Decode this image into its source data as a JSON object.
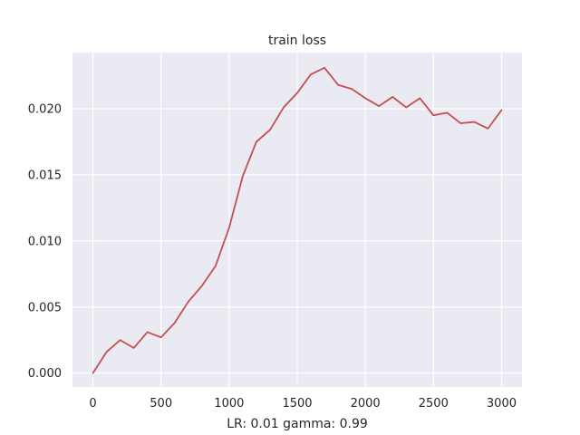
{
  "chart_data": {
    "type": "line",
    "title": "train loss",
    "xlabel": "LR: 0.01 gamma: 0.99",
    "ylabel": "",
    "xlim": [
      -150,
      3150
    ],
    "ylim": [
      -0.00105,
      0.02425
    ],
    "xticks": [
      0,
      500,
      1000,
      1500,
      2000,
      2500,
      3000
    ],
    "xtick_labels": [
      "0",
      "500",
      "1000",
      "1500",
      "2000",
      "2500",
      "3000"
    ],
    "yticks": [
      0.0,
      0.005,
      0.01,
      0.015,
      0.02
    ],
    "ytick_labels": [
      "0.000",
      "0.005",
      "0.010",
      "0.015",
      "0.020"
    ],
    "grid": true,
    "background": "#EAEAF2",
    "line_color": "#C44E52",
    "series": [
      {
        "x": [
          0,
          100,
          200,
          300,
          400,
          500,
          600,
          700,
          800,
          900,
          1000,
          1100,
          1200,
          1300,
          1400,
          1500,
          1600,
          1700,
          1800,
          1900,
          2000,
          2100,
          2200,
          2300,
          2400,
          2500,
          2600,
          2700,
          2800,
          2900,
          3000
        ],
        "values": [
          0.0,
          0.0016,
          0.0025,
          0.0019,
          0.0031,
          0.0027,
          0.0038,
          0.0054,
          0.0066,
          0.0081,
          0.011,
          0.0149,
          0.0175,
          0.0184,
          0.0201,
          0.0212,
          0.0226,
          0.0231,
          0.0218,
          0.0215,
          0.0208,
          0.0202,
          0.0209,
          0.0201,
          0.0208,
          0.0195,
          0.0197,
          0.0189,
          0.019,
          0.0185,
          0.0199
        ]
      }
    ]
  }
}
